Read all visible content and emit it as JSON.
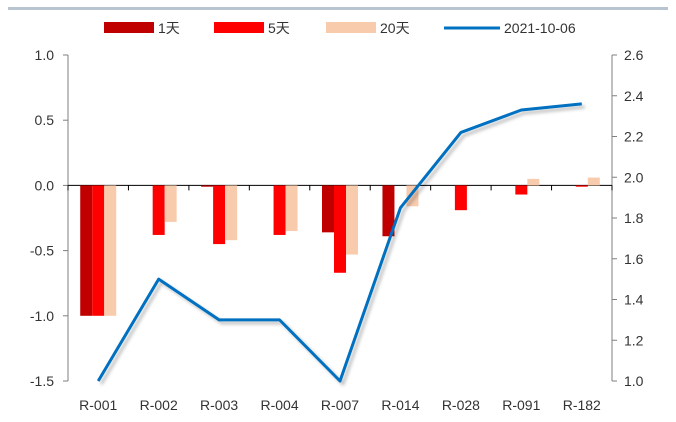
{
  "chart_data": {
    "type": "bar",
    "categories": [
      "R-001",
      "R-002",
      "R-003",
      "R-004",
      "R-007",
      "R-014",
      "R-028",
      "R-091",
      "R-182"
    ],
    "series": [
      {
        "name": "1天",
        "type": "bar",
        "axis": "left",
        "color": "#C00000",
        "values": [
          -1.0,
          0.0,
          -0.01,
          0.0,
          -0.36,
          -0.39,
          0.0,
          0.0,
          0.0
        ]
      },
      {
        "name": "5天",
        "type": "bar",
        "axis": "left",
        "color": "#FF0000",
        "values": [
          -1.0,
          -0.38,
          -0.45,
          -0.38,
          -0.67,
          0.0,
          -0.19,
          -0.07,
          -0.01
        ]
      },
      {
        "name": "20天",
        "type": "bar",
        "axis": "left",
        "color": "#F8CBAD",
        "values": [
          -1.0,
          -0.28,
          -0.42,
          -0.35,
          -0.53,
          -0.16,
          0.0,
          0.05,
          0.06
        ]
      },
      {
        "name": "2021-10-06",
        "type": "line",
        "axis": "right",
        "color": "#0070C0",
        "values": [
          1.0,
          1.5,
          1.3,
          1.3,
          1.0,
          1.85,
          2.22,
          2.33,
          2.36
        ]
      }
    ],
    "y_left": {
      "min": -1.5,
      "max": 1.0,
      "ticks": [
        "1.0",
        "0.5",
        "0.0",
        "-0.5",
        "-1.0",
        "-1.5"
      ]
    },
    "y_right": {
      "min": 1.0,
      "max": 2.6,
      "ticks": [
        "2.6",
        "2.4",
        "2.2",
        "2.0",
        "1.8",
        "1.6",
        "1.4",
        "1.2",
        "1.0"
      ]
    },
    "legend_position": "top",
    "grid": false,
    "title": "",
    "xlabel": "",
    "ylabel": ""
  }
}
